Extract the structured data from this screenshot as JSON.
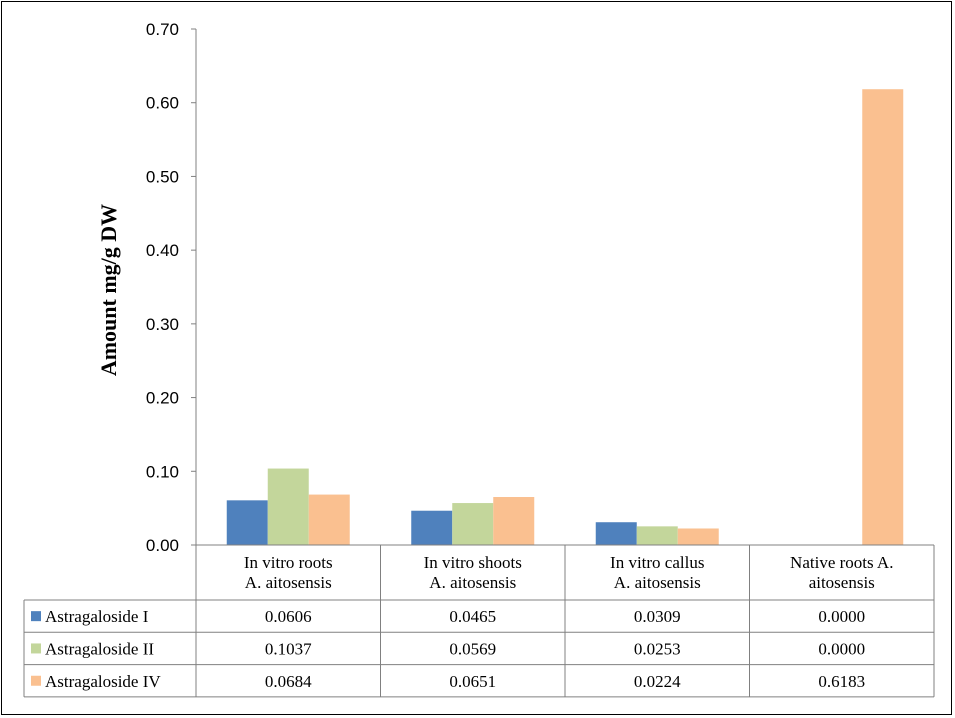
{
  "chart_data": {
    "type": "bar",
    "title": "",
    "xlabel": "",
    "ylabel": "Amount mg/g DW",
    "ylim": [
      0,
      0.7
    ],
    "yticks": [
      "0.00",
      "0.10",
      "0.20",
      "0.30",
      "0.40",
      "0.50",
      "0.60",
      "0.70"
    ],
    "grid": false,
    "legend_placement": "data-table",
    "categories": [
      [
        "In vitro roots",
        "A. aitosensis"
      ],
      [
        "In vitro shoots",
        "A. aitosensis"
      ],
      [
        "In vitro callus",
        "A. aitosensis"
      ],
      [
        "Native roots A.",
        "aitosensis"
      ]
    ],
    "series": [
      {
        "name": "Astragaloside I",
        "color": "#4f81bd",
        "values": [
          0.0606,
          0.0465,
          0.0309,
          0.0
        ],
        "labels": [
          "0.0606",
          "0.0465",
          "0.0309",
          "0.0000"
        ]
      },
      {
        "name": "Astragaloside II",
        "color": "#c3d69b",
        "values": [
          0.1037,
          0.0569,
          0.0253,
          0.0
        ],
        "labels": [
          "0.1037",
          "0.0569",
          "0.0253",
          "0.0000"
        ]
      },
      {
        "name": "Astragaloside IV",
        "color": "#fac090",
        "values": [
          0.0684,
          0.0651,
          0.0224,
          0.6183
        ],
        "labels": [
          "0.0684",
          "0.0651",
          "0.0224",
          "0.6183"
        ]
      }
    ]
  }
}
